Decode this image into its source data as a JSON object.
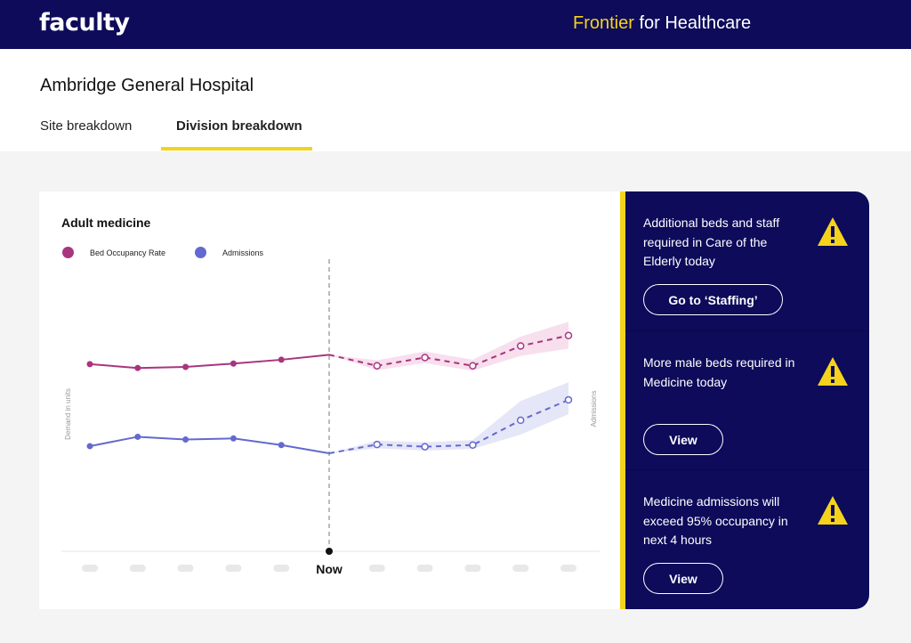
{
  "brand": {
    "logo": "faculty",
    "product_accent": "Frontier",
    "product_rest": " for Healthcare"
  },
  "header": {
    "hospital": "Ambridge General Hospital"
  },
  "tabs": [
    {
      "label": "Site breakdown",
      "active": false
    },
    {
      "label": "Division breakdown",
      "active": true
    }
  ],
  "colors": {
    "navy": "#0d0b5a",
    "accent": "#f5d31c",
    "occupancy": "#a8357f",
    "admissions": "#6469cf"
  },
  "chart": {
    "title": "Adult medicine",
    "legend": [
      {
        "name": "Bed Occupancy Rate",
        "color": "#a8357f"
      },
      {
        "name": "Admissions",
        "color": "#6469cf"
      }
    ],
    "left_axis_label": "Demand in units",
    "right_axis_label": "Admissions",
    "now_label": "Now"
  },
  "chart_data": {
    "type": "line",
    "x_points": 11,
    "now_index": 5,
    "x_tick_labels": [
      "",
      "",
      "",
      "",
      "",
      "Now",
      "",
      "",
      "",
      "",
      ""
    ],
    "series": [
      {
        "name": "Bed Occupancy Rate",
        "actual": [
          3.4,
          3.33,
          3.35,
          3.41,
          3.48,
          3.57
        ],
        "forecast": [
          3.57,
          3.37,
          3.52,
          3.37,
          3.73,
          3.92
        ],
        "forecast_upper": [
          3.57,
          3.47,
          3.63,
          3.48,
          3.9,
          4.17
        ],
        "forecast_lower": [
          3.57,
          3.29,
          3.42,
          3.28,
          3.55,
          3.68
        ]
      },
      {
        "name": "Admissions",
        "actual": [
          1.91,
          2.08,
          2.03,
          2.05,
          1.93,
          1.78
        ],
        "forecast": [
          1.78,
          1.94,
          1.9,
          1.93,
          2.38,
          2.75
        ],
        "forecast_upper": [
          1.78,
          2.01,
          1.98,
          2.02,
          2.73,
          3.07
        ],
        "forecast_lower": [
          1.78,
          1.87,
          1.83,
          1.86,
          2.12,
          2.49
        ]
      }
    ],
    "ylim": [
      0,
      5
    ],
    "grid": false
  },
  "alerts": [
    {
      "text": "Additional beds and staff required in Care of the Elderly today",
      "button": "Go to ‘Staffing’"
    },
    {
      "text": "More male beds required in Medicine today",
      "button": "View"
    },
    {
      "text": "Medicine admissions will exceed 95% occupancy in next 4 hours",
      "button": "View"
    }
  ]
}
